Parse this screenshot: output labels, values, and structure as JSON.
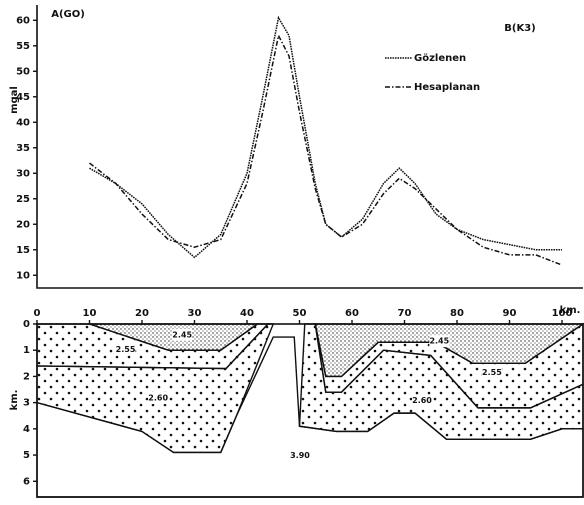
{
  "chart_data": [
    {
      "type": "line",
      "y_label": "mgal",
      "annotations": [
        "A(GO)",
        "B(K3)"
      ],
      "x": [
        10,
        15,
        20,
        25,
        30,
        35,
        40,
        43,
        46,
        48,
        50,
        53,
        55,
        58,
        62,
        66,
        69,
        72,
        76,
        80,
        85,
        90,
        95,
        100
      ],
      "series": [
        {
          "name": "Gözlenen",
          "color": "#111111",
          "style": "dotted",
          "values": [
            31,
            28,
            24,
            18,
            13.5,
            18,
            30,
            45,
            60.5,
            57,
            45,
            28,
            20,
            17.5,
            21,
            28,
            31,
            28,
            22,
            19,
            17,
            16,
            15,
            15
          ]
        },
        {
          "name": "Hesaplanan",
          "color": "#111111",
          "style": "dashdot",
          "values": [
            32,
            28,
            22,
            17,
            15.5,
            17,
            28,
            42,
            57,
            53,
            42,
            27,
            20,
            17.5,
            20,
            26,
            29,
            27,
            23,
            19,
            15.5,
            14,
            14,
            12
          ]
        }
      ],
      "xlim": [
        0,
        104
      ],
      "ylim": [
        7.5,
        63
      ],
      "yticks": [
        10,
        15,
        20,
        25,
        30,
        35,
        40,
        45,
        50,
        55,
        60
      ]
    },
    {
      "type": "section",
      "x_label": "km.",
      "y_label": "km.",
      "xlim": [
        0,
        104
      ],
      "xticks": [
        0,
        10,
        20,
        30,
        40,
        50,
        60,
        70,
        80,
        90,
        100
      ],
      "ylim": [
        6.6,
        0
      ],
      "yticks": [
        0,
        1,
        2,
        3,
        4,
        5,
        6
      ],
      "layers": [
        {
          "label": "3.90",
          "fill": "none",
          "x": [
            45,
            49,
            50,
            57,
            63,
            68,
            72,
            78,
            94,
            100,
            104,
            104,
            0,
            0,
            20,
            26,
            35,
            38
          ],
          "depth": [
            0.5,
            0.5,
            3.9,
            4.1,
            4.1,
            3.4,
            3.4,
            4.4,
            4.4,
            4.0,
            4.0,
            6.6,
            6.6,
            3.0,
            4.1,
            4.9,
            4.9,
            3.5
          ]
        },
        {
          "label": "2.60",
          "fill": "sparse",
          "x": [
            0,
            36,
            44,
            45,
            38,
            35,
            26,
            20,
            0
          ],
          "depth": [
            1.6,
            1.7,
            0,
            0,
            3.5,
            4.9,
            4.9,
            4.1,
            3.0
          ]
        },
        {
          "label": "2.55",
          "fill": "sparse",
          "x": [
            0,
            10,
            25,
            35,
            42,
            44,
            36,
            0
          ],
          "depth": [
            0,
            0,
            1.0,
            1.0,
            0,
            0,
            1.7,
            1.6
          ]
        },
        {
          "label": "2.45",
          "fill": "dense",
          "x": [
            10,
            42,
            35,
            25
          ],
          "depth": [
            0,
            0,
            1.0,
            1.0
          ]
        },
        {
          "label": "2.60",
          "fill": "sparse",
          "x": [
            51,
            53,
            55,
            58,
            66,
            75,
            84,
            94,
            104,
            104,
            100,
            94,
            78,
            72,
            68,
            63,
            57,
            50
          ],
          "depth": [
            0,
            0,
            2.6,
            2.6,
            1.0,
            1.2,
            3.2,
            3.2,
            2.3,
            4.0,
            4.0,
            4.4,
            4.4,
            3.4,
            3.4,
            4.1,
            4.1,
            3.9
          ]
        },
        {
          "label": "2.55",
          "fill": "sparse",
          "x": [
            53,
            55,
            58,
            65,
            76,
            83,
            93,
            104,
            104,
            94,
            84,
            75,
            66,
            58,
            55
          ],
          "depth": [
            0,
            2.0,
            2.0,
            0.7,
            0.7,
            1.5,
            1.5,
            0,
            2.3,
            3.2,
            3.2,
            1.2,
            1.0,
            2.6,
            2.6
          ]
        },
        {
          "label": "2.45",
          "fill": "dense",
          "x": [
            53,
            104,
            93,
            83,
            76,
            65,
            58,
            55
          ],
          "depth": [
            0,
            0,
            1.5,
            1.5,
            0.7,
            0.7,
            2.0,
            2.0
          ]
        }
      ]
    }
  ]
}
